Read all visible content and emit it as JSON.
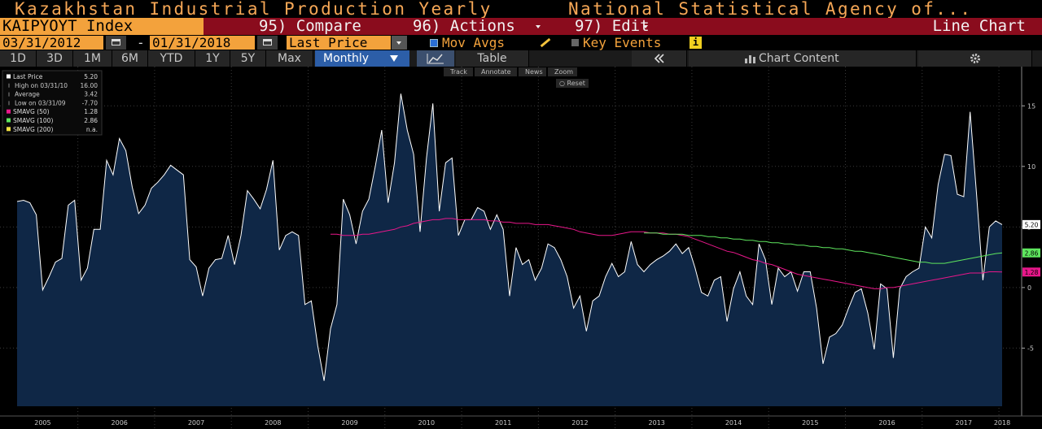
{
  "ui": {
    "title": "Kazakhstan Industrial Production Yearly",
    "source": "National Statistical Agency of...",
    "ticker": "KAIPYOYT Index",
    "compare": "95) Compare",
    "actions": "96) Actions",
    "edit": "97) Edit",
    "chart_type": "Line Chart",
    "start_date": "03/31/2012",
    "dash": "-",
    "end_date": "01/31/2018",
    "field": "Last Price",
    "mov_avgs": "Mov Avgs",
    "key_events": "Key Events",
    "info": "i",
    "ranges": [
      "1D",
      "3D",
      "1M",
      "6M",
      "YTD",
      "1Y",
      "5Y",
      "Max"
    ],
    "frequency": "Monthly",
    "table": "Table",
    "chart_content": "Chart Content",
    "tools": [
      "Track",
      "Annotate",
      "News",
      "Zoom"
    ],
    "reset": "Reset"
  },
  "chart_data": {
    "type": "line",
    "categories": [
      null,
      null,
      null,
      null,
      "2005",
      null,
      null,
      null,
      null,
      null,
      null,
      null,
      null,
      null,
      null,
      null,
      "2006",
      null,
      null,
      null,
      null,
      null,
      null,
      null,
      null,
      null,
      null,
      null,
      "2007",
      null,
      null,
      null,
      null,
      null,
      null,
      null,
      null,
      null,
      null,
      null,
      "2008",
      null,
      null,
      null,
      null,
      null,
      null,
      null,
      null,
      null,
      null,
      null,
      "2009",
      null,
      null,
      null,
      null,
      null,
      null,
      null,
      null,
      null,
      null,
      null,
      "2010",
      null,
      null,
      null,
      null,
      null,
      null,
      null,
      null,
      null,
      null,
      null,
      "2011",
      null,
      null,
      null,
      null,
      null,
      null,
      null,
      null,
      null,
      null,
      null,
      "2012",
      null,
      null,
      null,
      null,
      null,
      null,
      null,
      null,
      null,
      null,
      null,
      "2013",
      null,
      null,
      null,
      null,
      null,
      null,
      null,
      null,
      null,
      null,
      null,
      "2014",
      null,
      null,
      null,
      null,
      null,
      null,
      null,
      null,
      null,
      null,
      null,
      "2015",
      null,
      null,
      null,
      null,
      null,
      null,
      null,
      null,
      null,
      null,
      null,
      "2016",
      null,
      null,
      null,
      null,
      null,
      null,
      null,
      null,
      null,
      null,
      null,
      "2017",
      null,
      null,
      null,
      null,
      null,
      "2018"
    ],
    "series": [
      {
        "name": "Last Price",
        "color": "#ffffff",
        "fill": "#0f2746",
        "last": 5.2,
        "last_label": "5.20",
        "values": [
          7.1,
          7.2,
          7.0,
          6.0,
          -0.2,
          0.9,
          2.1,
          2.4,
          6.8,
          7.2,
          0.6,
          1.6,
          4.8,
          4.8,
          10.5,
          9.3,
          12.3,
          11.3,
          8.3,
          6.1,
          6.8,
          8.2,
          8.7,
          9.3,
          10.1,
          9.7,
          9.3,
          2.3,
          1.7,
          -0.7,
          1.6,
          2.3,
          2.4,
          4.3,
          1.9,
          4.3,
          8.0,
          7.3,
          6.5,
          8.1,
          10.5,
          3.1,
          4.3,
          4.6,
          4.3,
          -1.4,
          -1.1,
          -4.8,
          -7.7,
          -3.4,
          -1.4,
          7.3,
          6.0,
          3.6,
          6.3,
          7.3,
          10.0,
          13.0,
          7.0,
          10.3,
          16.0,
          13.0,
          11.0,
          4.6,
          10.7,
          15.2,
          6.3,
          10.3,
          10.7,
          4.3,
          5.6,
          5.6,
          6.6,
          6.3,
          4.8,
          6.0,
          4.8,
          -0.7,
          3.3,
          1.9,
          2.3,
          0.6,
          1.6,
          3.6,
          3.3,
          2.3,
          0.9,
          -1.7,
          -0.7,
          -3.6,
          -1.1,
          -0.7,
          0.9,
          2.0,
          0.9,
          1.3,
          3.8,
          1.9,
          1.3,
          1.9,
          2.3,
          2.6,
          3.0,
          3.6,
          2.8,
          3.3,
          1.6,
          -0.4,
          -0.7,
          0.6,
          0.9,
          -2.8,
          -0.1,
          1.3,
          -0.7,
          -1.4,
          3.6,
          2.3,
          -1.4,
          1.6,
          0.9,
          1.3,
          -0.3,
          1.3,
          1.3,
          -1.7,
          -6.3,
          -4.1,
          -3.8,
          -3.1,
          -1.7,
          -0.4,
          -0.1,
          -2.1,
          -5.1,
          0.3,
          -0.1,
          -5.8,
          -0.1,
          0.9,
          1.3,
          1.6,
          5.0,
          4.1,
          8.5,
          11.0,
          10.9,
          7.7,
          7.5,
          14.5,
          7.7,
          0.6,
          5.0,
          5.5,
          5.2
        ]
      },
      {
        "name": "SMAVG (50)",
        "color": "#e8178a",
        "last": 1.28,
        "last_label": "1.28",
        "values": [
          null,
          null,
          null,
          null,
          null,
          null,
          null,
          null,
          null,
          null,
          null,
          null,
          null,
          null,
          null,
          null,
          null,
          null,
          null,
          null,
          null,
          null,
          null,
          null,
          null,
          null,
          null,
          null,
          null,
          null,
          null,
          null,
          null,
          null,
          null,
          null,
          null,
          null,
          null,
          null,
          null,
          null,
          null,
          null,
          null,
          null,
          null,
          null,
          null,
          4.4,
          4.4,
          4.3,
          4.3,
          4.3,
          4.4,
          4.4,
          4.5,
          4.6,
          4.7,
          4.8,
          5.0,
          5.1,
          5.3,
          5.4,
          5.5,
          5.6,
          5.6,
          5.7,
          5.7,
          5.6,
          5.6,
          5.6,
          5.6,
          5.6,
          5.5,
          5.5,
          5.4,
          5.4,
          5.3,
          5.3,
          5.3,
          5.2,
          5.2,
          5.2,
          5.1,
          5.0,
          4.9,
          4.8,
          4.6,
          4.5,
          4.4,
          4.3,
          4.3,
          4.3,
          4.4,
          4.5,
          4.6,
          4.6,
          4.6,
          4.5,
          4.5,
          4.5,
          4.4,
          4.4,
          4.3,
          4.2,
          4.0,
          3.8,
          3.6,
          3.4,
          3.2,
          3.0,
          2.9,
          2.7,
          2.5,
          2.3,
          2.2,
          2.0,
          1.9,
          1.7,
          1.5,
          1.3,
          1.1,
          1.0,
          0.9,
          0.8,
          0.7,
          0.6,
          0.5,
          0.4,
          0.3,
          0.2,
          0.1,
          0.0,
          -0.1,
          -0.1,
          0.0,
          0.0,
          0.1,
          0.2,
          0.3,
          0.4,
          0.5,
          0.6,
          0.7,
          0.8,
          0.9,
          1.0,
          1.1,
          1.2,
          1.2,
          1.2,
          1.3,
          1.3,
          1.28
        ]
      },
      {
        "name": "SMAVG (100)",
        "color": "#5ee65e",
        "last": 2.86,
        "last_label": "2.86",
        "values": [
          null,
          null,
          null,
          null,
          null,
          null,
          null,
          null,
          null,
          null,
          null,
          null,
          null,
          null,
          null,
          null,
          null,
          null,
          null,
          null,
          null,
          null,
          null,
          null,
          null,
          null,
          null,
          null,
          null,
          null,
          null,
          null,
          null,
          null,
          null,
          null,
          null,
          null,
          null,
          null,
          null,
          null,
          null,
          null,
          null,
          null,
          null,
          null,
          null,
          null,
          null,
          null,
          null,
          null,
          null,
          null,
          null,
          null,
          null,
          null,
          null,
          null,
          null,
          null,
          null,
          null,
          null,
          null,
          null,
          null,
          null,
          null,
          null,
          null,
          null,
          null,
          null,
          null,
          null,
          null,
          null,
          null,
          null,
          null,
          null,
          null,
          null,
          null,
          null,
          null,
          null,
          null,
          null,
          null,
          null,
          null,
          null,
          null,
          4.5,
          4.5,
          4.5,
          4.4,
          4.4,
          4.4,
          4.4,
          4.3,
          4.3,
          4.3,
          4.2,
          4.2,
          4.1,
          4.1,
          4.0,
          4.0,
          3.9,
          3.9,
          3.8,
          3.8,
          3.7,
          3.7,
          3.6,
          3.6,
          3.5,
          3.5,
          3.4,
          3.4,
          3.3,
          3.3,
          3.2,
          3.2,
          3.1,
          3.0,
          3.0,
          2.9,
          2.8,
          2.7,
          2.6,
          2.5,
          2.4,
          2.3,
          2.2,
          2.1,
          2.1,
          2.0,
          2.0,
          2.0,
          2.1,
          2.2,
          2.3,
          2.4,
          2.5,
          2.6,
          2.7,
          2.8,
          2.86
        ]
      },
      {
        "name": "SMAVG (200)",
        "color": "#f0e040",
        "last_label": "n.a."
      }
    ],
    "stats": [
      {
        "label": "High on 03/31/10",
        "value": 16,
        "value_label": "16.00"
      },
      {
        "label": "Average",
        "value": 3.42,
        "value_label": "3.42"
      },
      {
        "label": "Low on 03/31/09",
        "value": -7.7,
        "value_label": "-7.70"
      }
    ],
    "ylim": [
      -9.8,
      17.7
    ],
    "yticks": [
      -5,
      0,
      5,
      10,
      15
    ],
    "grid": true
  }
}
